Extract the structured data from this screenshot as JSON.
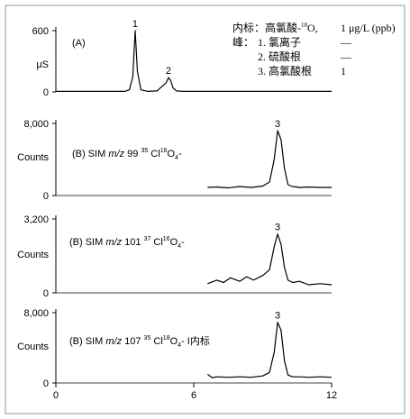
{
  "legend": {
    "title_prefix": "内标：高氯酸-",
    "title_sup": "18",
    "title_suffix": "O,",
    "title_value": "1 μg/L (ppb)",
    "peak_heading": "峰：",
    "peaks": [
      {
        "label": "1. 氯离子",
        "value": "—"
      },
      {
        "label": "2. 硫酸根",
        "value": "—"
      },
      {
        "label": "3. 高氯酸根",
        "value": "1"
      }
    ]
  },
  "chart_data": [
    {
      "type": "line",
      "panel_label": "(A)",
      "ylabel": "μS",
      "yticks": [
        0,
        600
      ],
      "ylim": [
        0,
        600
      ],
      "xlim": [
        0,
        12
      ],
      "x": [
        0,
        1,
        2,
        3,
        3.2,
        3.35,
        3.45,
        3.55,
        3.7,
        4,
        4.4,
        4.8,
        4.9,
        5.0,
        5.1,
        5.25,
        5.5,
        6,
        8,
        10,
        12
      ],
      "y": [
        5,
        5,
        5,
        5,
        20,
        150,
        600,
        200,
        20,
        5,
        10,
        90,
        140,
        110,
        40,
        10,
        5,
        5,
        5,
        5,
        5
      ],
      "annotations": [
        {
          "text": "1",
          "x": 3.45,
          "y": 600
        },
        {
          "text": "2",
          "x": 4.9,
          "y": 140
        }
      ]
    },
    {
      "type": "line",
      "panel_label_prefix": "(B) SIM ",
      "panel_label_mz": "m/z",
      "panel_label_mass": " 99 ",
      "panel_label_iso": "35",
      "panel_label_cl": " Cl",
      "panel_label_o": "16",
      "panel_label_o4": "O",
      "panel_label_sub": "4",
      "panel_label_tail": "-",
      "ylabel": "Counts",
      "yticks": [
        0,
        8000
      ],
      "ylim": [
        0,
        8000
      ],
      "xlim": [
        0,
        12
      ],
      "x": [
        6.6,
        7,
        7.5,
        8,
        8.5,
        9,
        9.3,
        9.5,
        9.65,
        9.8,
        9.95,
        10.1,
        10.3,
        10.6,
        11,
        11.5,
        12
      ],
      "y": [
        900,
        950,
        850,
        1000,
        900,
        1050,
        1500,
        4000,
        7200,
        6200,
        3000,
        1200,
        1000,
        900,
        950,
        900,
        900
      ],
      "annotations": [
        {
          "text": "3",
          "x": 9.65,
          "y": 7200
        }
      ]
    },
    {
      "type": "line",
      "panel_label_prefix": "(B) SIM ",
      "panel_label_mz": "m/z",
      "panel_label_mass": " 101 ",
      "panel_label_iso": "37",
      "panel_label_cl": " Cl",
      "panel_label_o": "16",
      "panel_label_o4": "O",
      "panel_label_sub": "4",
      "panel_label_tail": "-",
      "ylabel": "Counts",
      "yticks": [
        0,
        3200
      ],
      "ylim": [
        0,
        3200
      ],
      "xlim": [
        0,
        12
      ],
      "x": [
        6.6,
        7,
        7.3,
        7.6,
        8,
        8.3,
        8.6,
        9,
        9.3,
        9.5,
        9.65,
        9.8,
        9.95,
        10.1,
        10.3,
        10.6,
        11,
        11.5,
        12
      ],
      "y": [
        400,
        550,
        450,
        650,
        500,
        700,
        550,
        750,
        1000,
        2000,
        2550,
        2100,
        1100,
        550,
        450,
        500,
        350,
        400,
        350
      ],
      "annotations": [
        {
          "text": "3",
          "x": 9.65,
          "y": 2550
        }
      ]
    },
    {
      "type": "line",
      "panel_label_prefix": "(B) SIM ",
      "panel_label_mz": "m/z",
      "panel_label_mass": " 107 ",
      "panel_label_iso": "35",
      "panel_label_cl": " Cl",
      "panel_label_o": "18",
      "panel_label_o4": "O",
      "panel_label_sub": "4",
      "panel_label_tail": "- I内标",
      "ylabel": "Counts",
      "yticks": [
        0,
        8000
      ],
      "ylim": [
        0,
        8000
      ],
      "xlim": [
        0,
        12
      ],
      "x": [
        6.6,
        6.8,
        7,
        7.5,
        8,
        8.5,
        9,
        9.3,
        9.5,
        9.65,
        9.8,
        9.95,
        10.1,
        10.3,
        10.6,
        11,
        11.5,
        12
      ],
      "y": [
        1000,
        600,
        700,
        650,
        700,
        650,
        800,
        1200,
        3500,
        6900,
        6000,
        2500,
        900,
        700,
        700,
        650,
        700,
        650
      ],
      "annotations": [
        {
          "text": "3",
          "x": 9.65,
          "y": 6900
        }
      ]
    }
  ],
  "xaxis": {
    "ticks": [
      0,
      6,
      12
    ]
  }
}
